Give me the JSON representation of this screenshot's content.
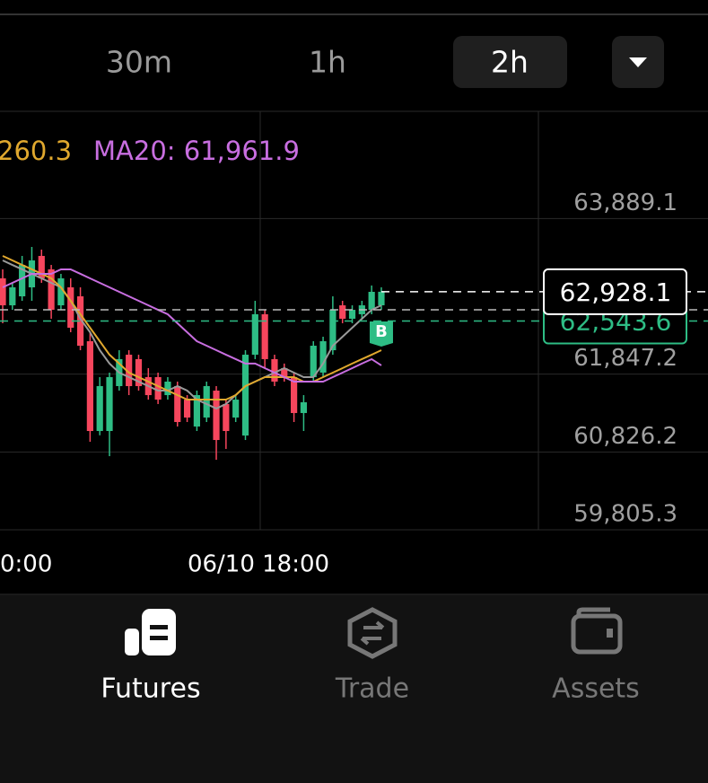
{
  "tabs": {
    "items": [
      "30m",
      "1h",
      "2h"
    ],
    "selected": 2
  },
  "chart_data": {
    "type": "candlestick",
    "up_color": "#2ebd85",
    "down_color": "#f6465d",
    "ma_labels": [
      {
        "text": "260.3",
        "color": "#e0a82e"
      },
      {
        "text": "MA20: 61,961.9",
        "color": "#c86ee0"
      }
    ],
    "ylim": [
      59805.3,
      65283
    ],
    "yticks": [
      {
        "value": 63889.1,
        "label": "63,889.1"
      },
      {
        "value": 61847.2,
        "label": "61,847.2"
      },
      {
        "value": 60826.2,
        "label": "60,826.2"
      },
      {
        "value": 59805.3,
        "label": "59,805.3"
      }
    ],
    "x_labels": [
      "0:00",
      "06/10 18:00"
    ],
    "candles": [
      [
        63104,
        63222,
        62515,
        62750
      ],
      [
        62750,
        63045,
        62691,
        62986
      ],
      [
        62868,
        63398,
        62809,
        63280
      ],
      [
        62986,
        63516,
        62809,
        63339
      ],
      [
        63398,
        63481,
        63045,
        63104
      ],
      [
        63222,
        63280,
        62574,
        62691
      ],
      [
        62750,
        63163,
        62691,
        63104
      ],
      [
        62986,
        63104,
        62397,
        62456
      ],
      [
        62868,
        62986,
        62161,
        62220
      ],
      [
        62279,
        62397,
        60960,
        61101
      ],
      [
        61101,
        61808,
        61045,
        61690
      ],
      [
        61101,
        61867,
        60771,
        61808
      ],
      [
        61690,
        62161,
        61631,
        62044
      ],
      [
        62102,
        62161,
        61572,
        61690
      ],
      [
        62044,
        62102,
        61631,
        61690
      ],
      [
        61808,
        61926,
        61513,
        61572
      ],
      [
        61808,
        61867,
        61455,
        61513
      ],
      [
        61572,
        61808,
        61513,
        61749
      ],
      [
        61690,
        61749,
        61160,
        61219
      ],
      [
        61513,
        61572,
        61219,
        61278
      ],
      [
        61160,
        61631,
        61101,
        61572
      ],
      [
        61278,
        61749,
        61219,
        61690
      ],
      [
        61631,
        61690,
        60724,
        60983
      ],
      [
        61455,
        61513,
        60866,
        61101
      ],
      [
        61278,
        61572,
        61219,
        61513
      ],
      [
        61042,
        62161,
        60983,
        62102
      ],
      [
        62102,
        62809,
        62044,
        62633
      ],
      [
        62633,
        62691,
        61926,
        62044
      ],
      [
        62044,
        62102,
        61690,
        61749
      ],
      [
        61926,
        61986,
        61749,
        61808
      ],
      [
        61808,
        61867,
        61219,
        61337
      ],
      [
        61337,
        61572,
        61101,
        61478
      ],
      [
        61808,
        62279,
        61749,
        62220
      ],
      [
        61867,
        62338,
        61808,
        62279
      ],
      [
        62161,
        62868,
        62102,
        62691
      ],
      [
        62750,
        62809,
        62515,
        62574
      ],
      [
        62574,
        62750,
        62515,
        62691
      ],
      [
        62633,
        62809,
        62574,
        62750
      ],
      [
        62691,
        63010,
        62633,
        62927
      ],
      [
        62750,
        62986,
        62691,
        62928.1
      ]
    ],
    "series": [
      {
        "color": "#9a9a9a",
        "values": [
          63339,
          63280,
          63222,
          63163,
          63104,
          63045,
          62986,
          62809,
          62574,
          62397,
          62161,
          61986,
          61867,
          61808,
          61749,
          61690,
          61631,
          61631,
          61690,
          61631,
          61513,
          61455,
          61396,
          61455,
          61572,
          61690,
          61749,
          61808,
          61867,
          61926,
          61867,
          61808,
          61808,
          61986,
          62220,
          62338,
          62456,
          62574,
          62691,
          62750
        ]
      },
      {
        "color": "#e0a82e",
        "values": [
          63398,
          63339,
          63280,
          63222,
          63163,
          63104,
          62986,
          62809,
          62633,
          62456,
          62279,
          62102,
          61986,
          61867,
          61808,
          61749,
          61690,
          61631,
          61572,
          61513,
          61513,
          61513,
          61513,
          61513,
          61572,
          61690,
          61749,
          61808,
          61808,
          61808,
          61808,
          61749,
          61749,
          61808,
          61867,
          61926,
          61986,
          62044,
          62102,
          62161
        ]
      },
      {
        "color": "#c86ee0",
        "values": [
          62986,
          63045,
          63104,
          63163,
          63163,
          63163,
          63222,
          63222,
          63163,
          63104,
          63045,
          62986,
          62927,
          62868,
          62809,
          62750,
          62691,
          62633,
          62515,
          62397,
          62279,
          62220,
          62161,
          62102,
          62044,
          61986,
          61986,
          61926,
          61867,
          61808,
          61749,
          61749,
          61749,
          61749,
          61808,
          61867,
          61926,
          61986,
          62044,
          61962
        ]
      }
    ],
    "price_tags": [
      {
        "value": 62543.6,
        "label": "62,543.6",
        "color": "#2ebd85"
      },
      {
        "value": 62928.1,
        "label": "62,928.1",
        "color": "#ffffff"
      }
    ],
    "marker": "B"
  },
  "nav": {
    "items": [
      "Futures",
      "Trade",
      "Assets"
    ],
    "active": 0
  }
}
